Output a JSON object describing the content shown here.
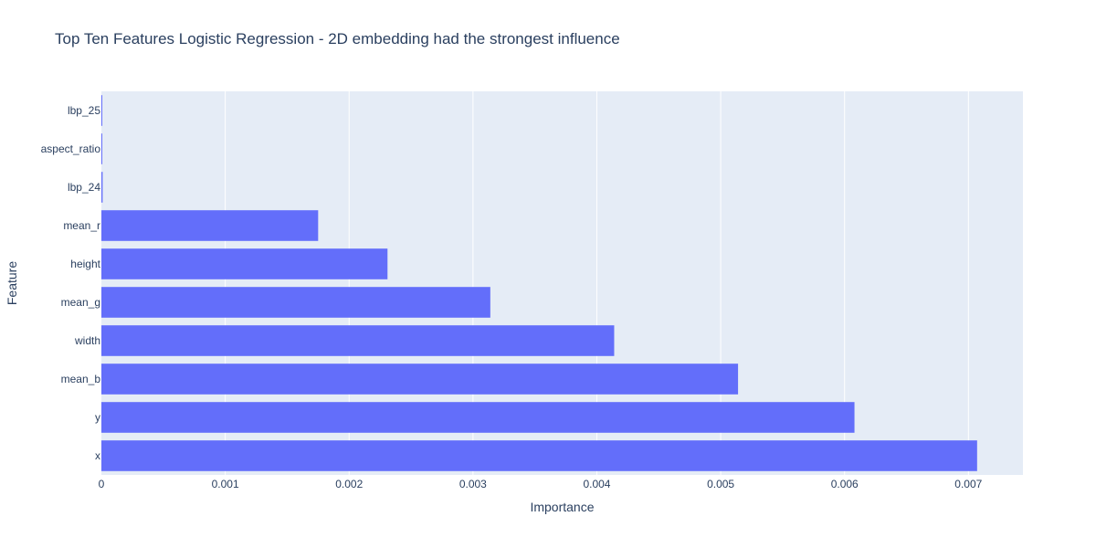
{
  "chart_data": {
    "type": "bar",
    "orientation": "horizontal",
    "title": "Top Ten Features Logistic Regression - 2D embedding had the strongest influence",
    "xlabel": "Importance",
    "ylabel": "Feature",
    "xlim": [
      0,
      0.00744
    ],
    "x_ticks": [
      0,
      0.001,
      0.002,
      0.003,
      0.004,
      0.005,
      0.006,
      0.007
    ],
    "x_tick_labels": [
      "0",
      "0.001",
      "0.002",
      "0.003",
      "0.004",
      "0.005",
      "0.006",
      "0.007"
    ],
    "categories": [
      "x",
      "y",
      "mean_b",
      "width",
      "mean_g",
      "height",
      "mean_r",
      "lbp_24",
      "aspect_ratio",
      "lbp_25"
    ],
    "values": [
      0.00707,
      0.00608,
      0.00514,
      0.00414,
      0.00314,
      0.00231,
      0.00175,
      1e-05,
      5e-06,
      5e-06
    ],
    "grid": true,
    "colors": {
      "bar": "#636efa",
      "plot_bg": "#e5ecf6",
      "grid": "#ffffff",
      "text": "#2a3f5f"
    }
  }
}
